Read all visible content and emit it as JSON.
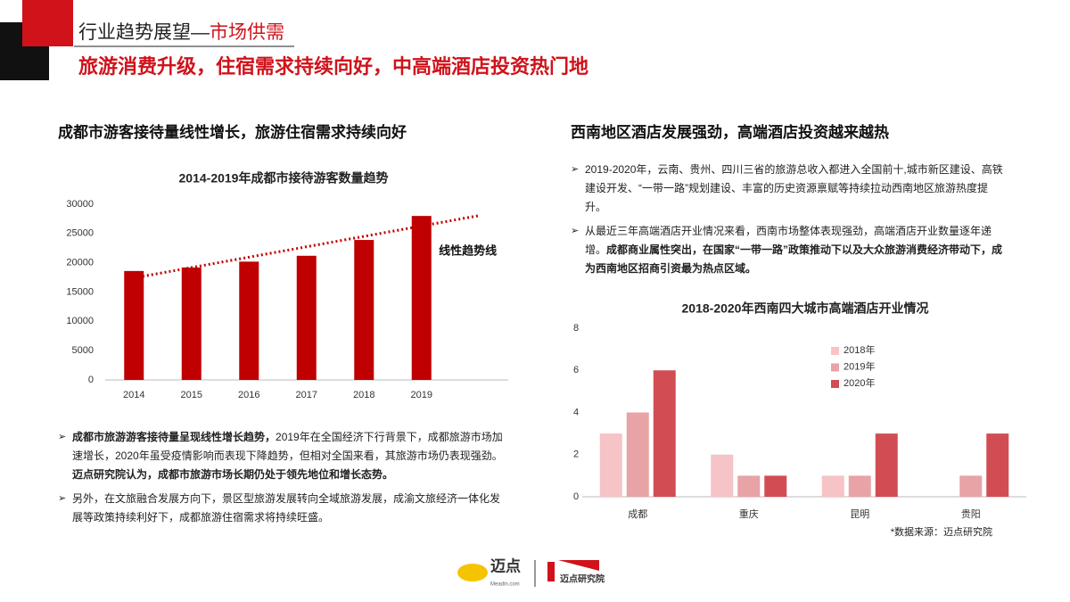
{
  "header": {
    "title_prefix": "行业趋势展望—",
    "title_highlight": "市场供需",
    "subtitle": "旅游消费升级，住宿需求持续向好，中高端酒店投资热门地"
  },
  "sections": [
    {
      "heading": "成都市游客接待量线性增长，旅游住宿需求持续向好",
      "bullets": [
        [
          {
            "text": "成都市旅游游客接待量呈现线性增长趋势，",
            "bold": true
          },
          {
            "text": "2019年在全国经济下行背景下，成都旅游市场加速增长，2020年虽受疫情影响而表现下降趋势，但相对全国来看，其旅游市场仍表现强劲。",
            "bold": false
          },
          {
            "text": "迈点研究院认为，成都市旅游市场长期仍处于领先地位和增长态势。",
            "bold": true
          }
        ],
        [
          {
            "text": "另外，在文旅融合发展方向下，景区型旅游发展转向全域旅游发展，成渝文旅经济一体化发展等政策持续利好下，成都旅游住宿需求将持续旺盛。",
            "bold": false
          }
        ]
      ]
    },
    {
      "heading": "西南地区酒店发展强劲，高端酒店投资越来越热",
      "bullets": [
        [
          {
            "text": "2019-2020年，云南、贵州、四川三省的旅游总收入都进入全国前十,城市新区建设、高铁建设开发、“一带一路”规划建设、丰富的历史资源禀赋等持续拉动西南地区旅游热度提升。",
            "bold": false
          }
        ],
        [
          {
            "text": "从最近三年高端酒店开业情况来看，西南市场整体表现强劲，高端酒店开业数量逐年递增。",
            "bold": false
          },
          {
            "text": "成都商业属性突出，在国家“一带一路”政策推动下以及大众旅游消费经济带动下，成为西南地区招商引资最为热点区域。",
            "bold": true
          }
        ]
      ]
    }
  ],
  "chart_data": [
    {
      "type": "bar",
      "title": "2014-2019年成都市接待游客数量趋势",
      "categories": [
        "2014",
        "2015",
        "2016",
        "2017",
        "2018",
        "2019"
      ],
      "values": [
        18600,
        19200,
        20200,
        21200,
        23900,
        28000
      ],
      "color": "#c00000",
      "ylim": [
        0,
        30000
      ],
      "yticks": [
        0,
        5000,
        10000,
        15000,
        20000,
        25000,
        30000
      ],
      "trendline": "线性趋势线",
      "trendline_color": "#c00000",
      "grid": false
    },
    {
      "type": "grouped-bar",
      "title": "2018-2020年西南四大城市高端酒店开业情况",
      "categories": [
        "成都",
        "重庆",
        "昆明",
        "贵阳"
      ],
      "series": [
        {
          "name": "2018年",
          "color": "#f6c3c6",
          "values": [
            3,
            2,
            1,
            0
          ]
        },
        {
          "name": "2019年",
          "color": "#e8a3a6",
          "values": [
            4,
            1,
            1,
            1
          ]
        },
        {
          "name": "2020年",
          "color": "#d24d53",
          "values": [
            6,
            1,
            3,
            3
          ]
        }
      ],
      "ylim": [
        0,
        8
      ],
      "yticks": [
        0,
        2,
        4,
        6,
        8
      ],
      "grid": false,
      "legend": "top-left",
      "source": "*数据来源：迈点研究院"
    }
  ],
  "footer": {
    "logo": "迈点",
    "logo_sub": "Meadin.com",
    "brand": "迈点研究院"
  }
}
